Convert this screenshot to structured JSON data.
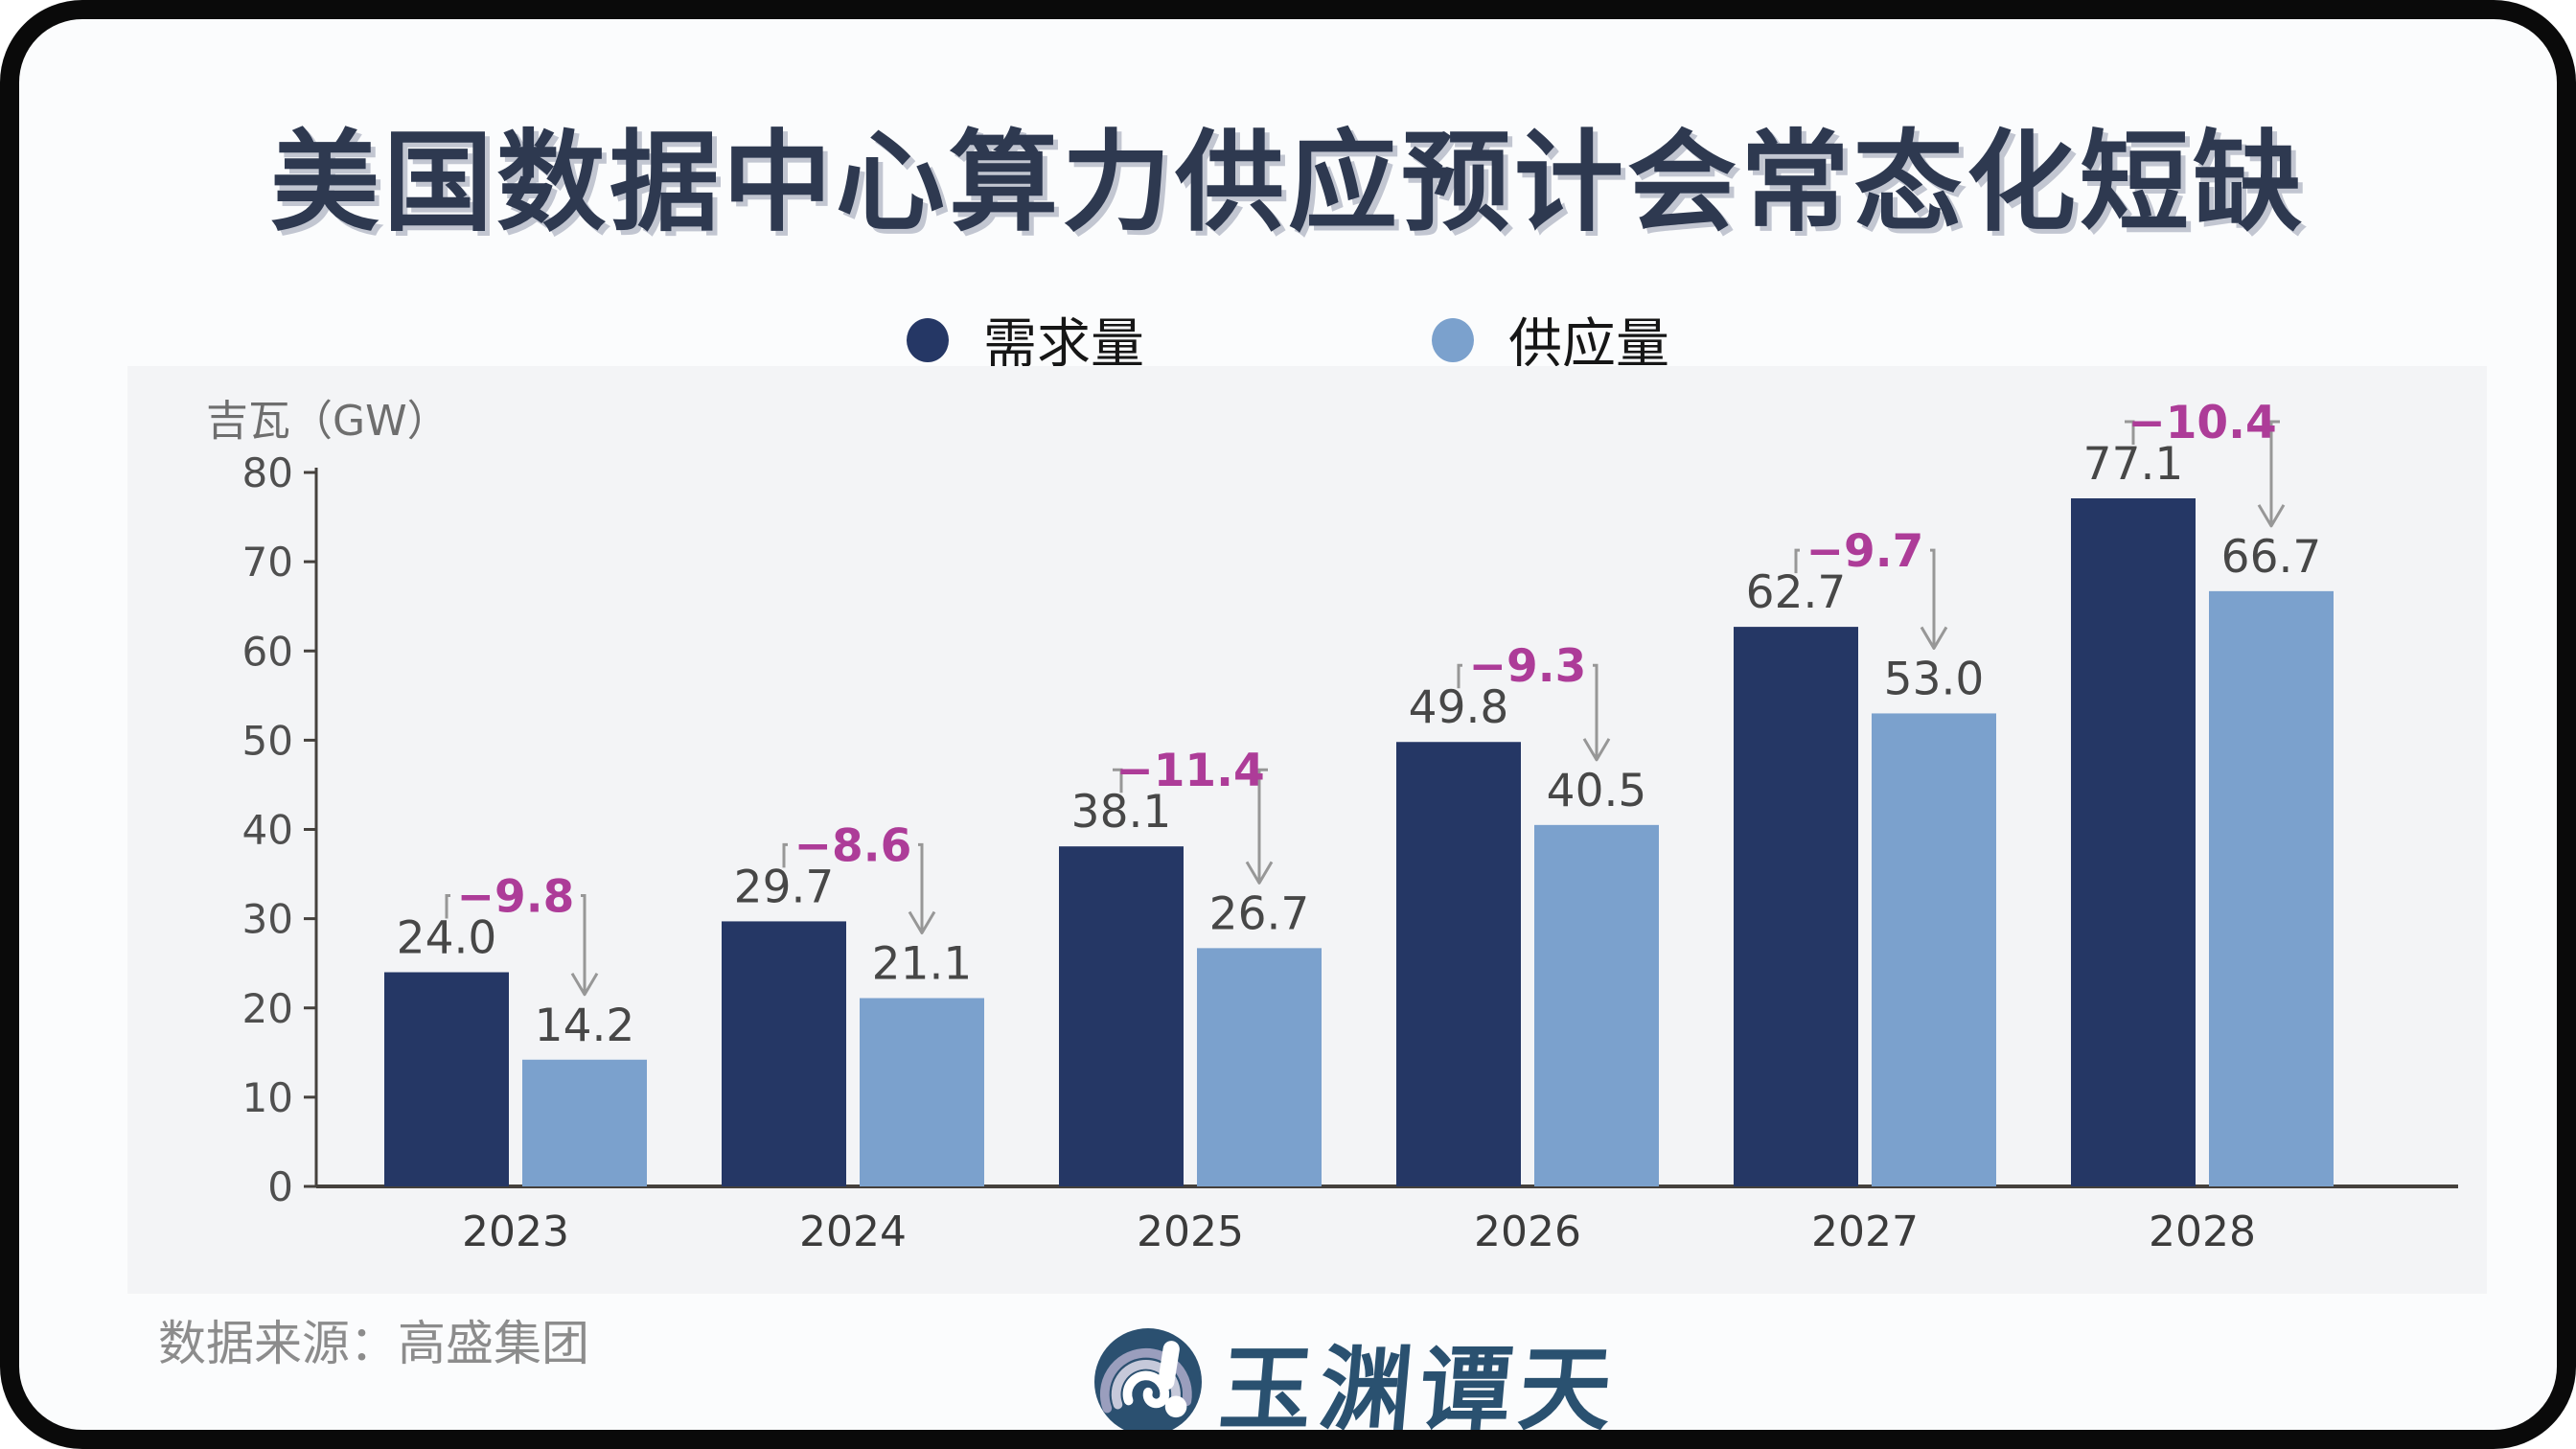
{
  "header": {
    "title": "美国数据中心算力供应预计会常态化短缺"
  },
  "chart_data": {
    "type": "bar",
    "title": "美国数据中心算力供应预计会常态化短缺",
    "ylabel": "吉瓦（GW）",
    "xlabel": "",
    "ylim": [
      0,
      80
    ],
    "ytick_step": 10,
    "grid": false,
    "legend_position": "top",
    "categories": [
      "2023",
      "2024",
      "2025",
      "2026",
      "2027",
      "2028"
    ],
    "series": [
      {
        "name": "需求量",
        "color": "#253765",
        "values": [
          24.0,
          29.7,
          38.1,
          49.8,
          62.7,
          77.1
        ]
      },
      {
        "name": "供应量",
        "color": "#7ba1cd",
        "values": [
          14.2,
          21.1,
          26.7,
          40.5,
          53.0,
          66.7
        ]
      }
    ],
    "gap_labels": [
      "−9.8",
      "−8.6",
      "−11.4",
      "−9.3",
      "−9.7",
      "−10.4"
    ],
    "gap_color": "#ad3c98"
  },
  "footer": {
    "source": "数据来源：高盛集团",
    "logo_text": "玉渊谭天"
  },
  "colors": {
    "page_bg": "#fbfcfd",
    "panel_bg": "#f3f4f6",
    "title": "#2e3950",
    "demand": "#253765",
    "supply": "#7ba1cd",
    "axis": "#45413d",
    "tick_label": "#4f4f4f",
    "value_label": "#474747",
    "year_label": "#3b3b3b",
    "unit_label": "#6e6e6e",
    "arrow": "#979797",
    "source": "#8c8c8c",
    "logo": "#2a5170"
  }
}
